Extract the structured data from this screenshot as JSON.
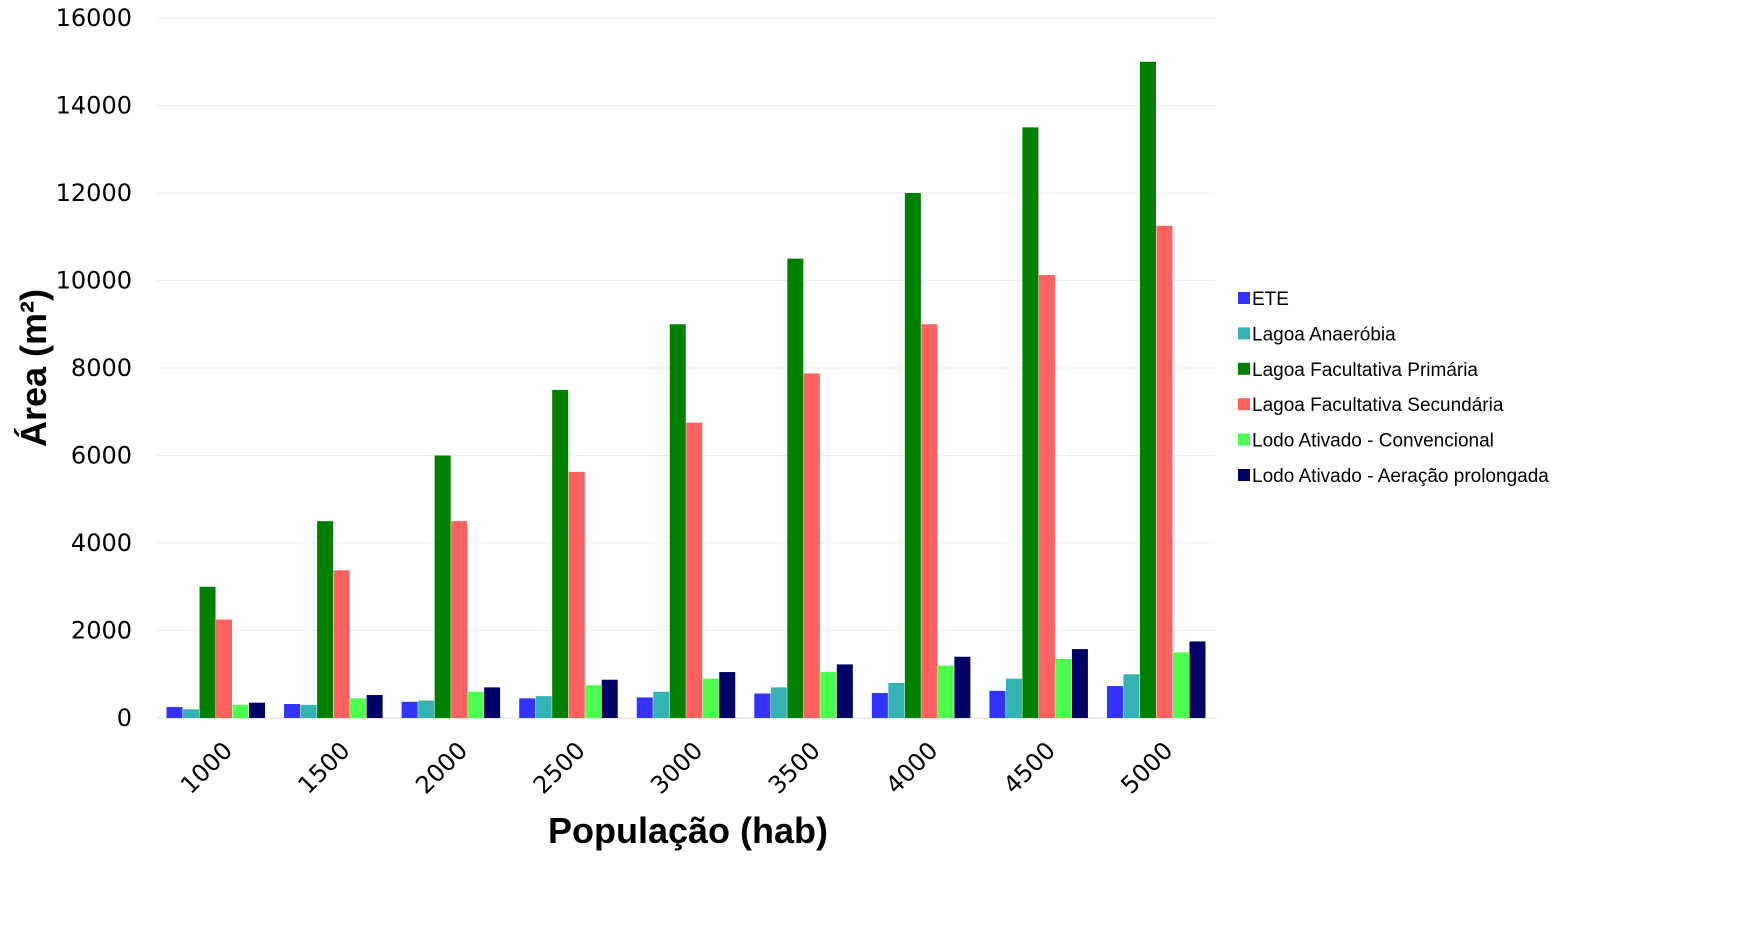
{
  "chart_data": {
    "type": "bar",
    "title": "",
    "xlabel": "População (hab)",
    "ylabel": "Área (m²)",
    "ylim": [
      0,
      16000
    ],
    "yticks": [
      0,
      2000,
      4000,
      6000,
      8000,
      10000,
      12000,
      14000,
      16000
    ],
    "grid": true,
    "legend_position": "right",
    "categories": [
      "1000",
      "1500",
      "2000",
      "2500",
      "3000",
      "3500",
      "4000",
      "4500",
      "5000"
    ],
    "series": [
      {
        "name": "ETE",
        "color": "#3333ff",
        "values": [
          250,
          320,
          370,
          450,
          470,
          560,
          570,
          620,
          730
        ]
      },
      {
        "name": "Lagoa Anaeróbia",
        "color": "#33b3b3",
        "values": [
          200,
          300,
          400,
          500,
          600,
          700,
          800,
          900,
          1000
        ]
      },
      {
        "name": "Lagoa Facultativa Primária",
        "color": "#008000",
        "values": [
          3000,
          4500,
          6000,
          7500,
          9000,
          10500,
          12000,
          13500,
          15000
        ]
      },
      {
        "name": "Lagoa Facultativa Secundária",
        "color": "#ff6060",
        "values": [
          2250,
          3375,
          4500,
          5625,
          6750,
          7875,
          9000,
          10125,
          11250
        ]
      },
      {
        "name": "Lodo Ativado - Convencional",
        "color": "#4dff4d",
        "values": [
          300,
          450,
          600,
          750,
          900,
          1050,
          1200,
          1350,
          1500
        ]
      },
      {
        "name": "Lodo Ativado - Aeração prolongada",
        "color": "#000066",
        "values": [
          350,
          525,
          700,
          875,
          1050,
          1225,
          1400,
          1575,
          1750
        ]
      }
    ]
  }
}
